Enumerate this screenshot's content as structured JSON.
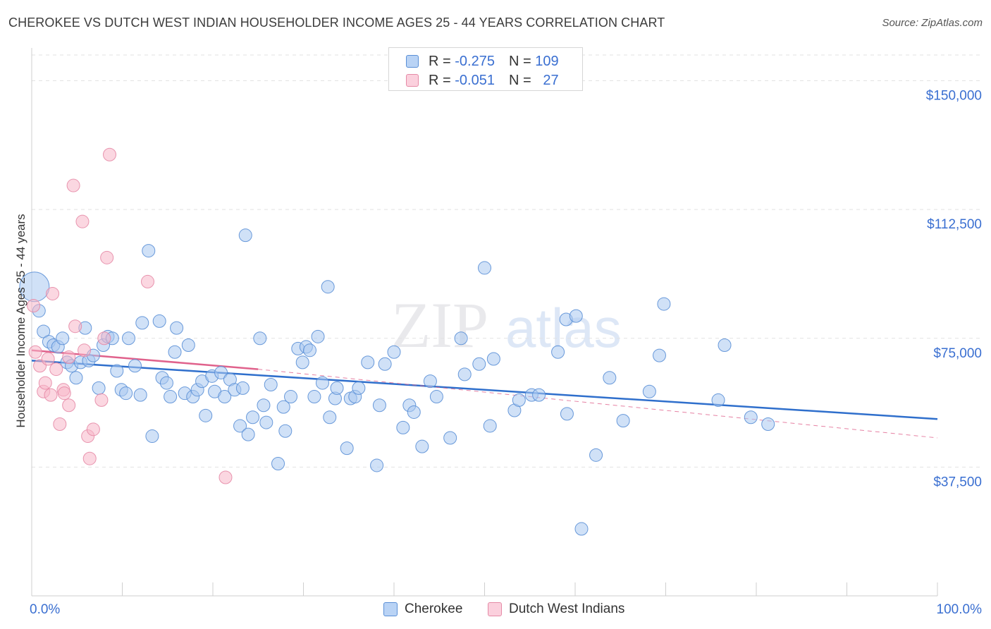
{
  "header": {
    "title": "CHEROKEE VS DUTCH WEST INDIAN HOUSEHOLDER INCOME AGES 25 - 44 YEARS CORRELATION CHART",
    "source": "Source: ZipAtlas.com"
  },
  "legend": {
    "rows": [
      {
        "r_label": "R =",
        "r_value": "-0.275",
        "n_label": "N =",
        "n_value": "109"
      },
      {
        "r_label": "R =",
        "r_value": "-0.051",
        "n_label": "N =",
        "n_value": "27"
      }
    ]
  },
  "watermark": {
    "zip": "ZIP",
    "atlas": "atlas"
  },
  "colors": {
    "cherokee_fill": "#a9c8f0",
    "cherokee_stroke": "#5a8fd6",
    "cherokee_line": "#2f6fcc",
    "dutch_fill": "#f7b6c9",
    "dutch_stroke": "#e58aa6",
    "dutch_line": "#e0628c",
    "axis_label": "#3a6fd1"
  },
  "chart_data": {
    "type": "scatter",
    "title": "CHEROKEE VS DUTCH WEST INDIAN HOUSEHOLDER INCOME AGES 25 - 44 YEARS CORRELATION CHART",
    "xlabel": "",
    "ylabel": "Householder Income Ages 25 - 44 years",
    "xlim": [
      0,
      100
    ],
    "ylim": [
      0,
      157500
    ],
    "x_tick_labels": [
      "0.0%",
      "100.0%"
    ],
    "y_ticks": [
      {
        "value": 37500,
        "label": "$37,500"
      },
      {
        "value": 75000,
        "label": "$75,000"
      },
      {
        "value": 112500,
        "label": "$112,500"
      },
      {
        "value": 150000,
        "label": "$150,000"
      }
    ],
    "grid": true,
    "legend_position": "bottom-center",
    "series": [
      {
        "name": "Cherokee",
        "R": -0.275,
        "N": 109,
        "trend": {
          "x": [
            0,
            100
          ],
          "y": [
            68500,
            51500
          ],
          "style": "solid"
        },
        "points": [
          {
            "x": 0.3,
            "y": 90000,
            "size": "large"
          },
          {
            "x": 0.8,
            "y": 83000
          },
          {
            "x": 1.3,
            "y": 77000
          },
          {
            "x": 1.9,
            "y": 74000
          },
          {
            "x": 2.4,
            "y": 73000
          },
          {
            "x": 2.9,
            "y": 72500
          },
          {
            "x": 3.4,
            "y": 75000
          },
          {
            "x": 3.9,
            "y": 68000
          },
          {
            "x": 4.4,
            "y": 67000
          },
          {
            "x": 4.9,
            "y": 63500
          },
          {
            "x": 5.4,
            "y": 68000
          },
          {
            "x": 5.9,
            "y": 78000
          },
          {
            "x": 6.3,
            "y": 68500
          },
          {
            "x": 6.8,
            "y": 70000
          },
          {
            "x": 7.4,
            "y": 60500
          },
          {
            "x": 7.9,
            "y": 73000
          },
          {
            "x": 8.4,
            "y": 75500
          },
          {
            "x": 8.9,
            "y": 75000
          },
          {
            "x": 9.4,
            "y": 65500
          },
          {
            "x": 9.9,
            "y": 60000
          },
          {
            "x": 10.4,
            "y": 59000
          },
          {
            "x": 10.7,
            "y": 75000
          },
          {
            "x": 11.4,
            "y": 67000
          },
          {
            "x": 12.0,
            "y": 58500
          },
          {
            "x": 12.2,
            "y": 79500
          },
          {
            "x": 12.9,
            "y": 100500
          },
          {
            "x": 13.3,
            "y": 46500
          },
          {
            "x": 14.1,
            "y": 80000
          },
          {
            "x": 14.4,
            "y": 63500
          },
          {
            "x": 14.9,
            "y": 62000
          },
          {
            "x": 15.3,
            "y": 58000
          },
          {
            "x": 15.8,
            "y": 71000
          },
          {
            "x": 16.0,
            "y": 78000
          },
          {
            "x": 16.9,
            "y": 59000
          },
          {
            "x": 17.3,
            "y": 73000
          },
          {
            "x": 17.8,
            "y": 58000
          },
          {
            "x": 18.3,
            "y": 60000
          },
          {
            "x": 18.8,
            "y": 62500
          },
          {
            "x": 19.2,
            "y": 52500
          },
          {
            "x": 19.9,
            "y": 64000
          },
          {
            "x": 20.2,
            "y": 59500
          },
          {
            "x": 20.9,
            "y": 65000
          },
          {
            "x": 21.3,
            "y": 58000
          },
          {
            "x": 21.9,
            "y": 63000
          },
          {
            "x": 22.4,
            "y": 60000
          },
          {
            "x": 23.0,
            "y": 49500
          },
          {
            "x": 23.3,
            "y": 60500
          },
          {
            "x": 23.6,
            "y": 105000
          },
          {
            "x": 23.9,
            "y": 47000
          },
          {
            "x": 24.4,
            "y": 52000
          },
          {
            "x": 25.2,
            "y": 75000
          },
          {
            "x": 25.6,
            "y": 55500
          },
          {
            "x": 25.9,
            "y": 50500
          },
          {
            "x": 26.4,
            "y": 61500
          },
          {
            "x": 27.2,
            "y": 38500
          },
          {
            "x": 27.8,
            "y": 55000
          },
          {
            "x": 28.0,
            "y": 48000
          },
          {
            "x": 28.6,
            "y": 58000
          },
          {
            "x": 29.4,
            "y": 72000
          },
          {
            "x": 29.9,
            "y": 68000
          },
          {
            "x": 30.3,
            "y": 72500
          },
          {
            "x": 30.7,
            "y": 71500
          },
          {
            "x": 31.2,
            "y": 58000
          },
          {
            "x": 31.6,
            "y": 75500
          },
          {
            "x": 32.1,
            "y": 62000
          },
          {
            "x": 32.7,
            "y": 90000
          },
          {
            "x": 32.9,
            "y": 52000
          },
          {
            "x": 33.5,
            "y": 57500
          },
          {
            "x": 33.7,
            "y": 60500
          },
          {
            "x": 34.8,
            "y": 43000
          },
          {
            "x": 35.2,
            "y": 57500
          },
          {
            "x": 35.7,
            "y": 58000
          },
          {
            "x": 36.1,
            "y": 60500
          },
          {
            "x": 37.1,
            "y": 68000
          },
          {
            "x": 38.1,
            "y": 38000
          },
          {
            "x": 38.4,
            "y": 55500
          },
          {
            "x": 39.0,
            "y": 67500
          },
          {
            "x": 40.0,
            "y": 71000
          },
          {
            "x": 41.0,
            "y": 49000
          },
          {
            "x": 41.7,
            "y": 55500
          },
          {
            "x": 42.2,
            "y": 53500
          },
          {
            "x": 43.1,
            "y": 43500
          },
          {
            "x": 44.0,
            "y": 62500
          },
          {
            "x": 44.7,
            "y": 58000
          },
          {
            "x": 46.2,
            "y": 46000
          },
          {
            "x": 47.4,
            "y": 75000
          },
          {
            "x": 47.8,
            "y": 64500
          },
          {
            "x": 49.4,
            "y": 67500
          },
          {
            "x": 50.0,
            "y": 95500
          },
          {
            "x": 50.6,
            "y": 49500
          },
          {
            "x": 51.0,
            "y": 69000
          },
          {
            "x": 53.3,
            "y": 54000
          },
          {
            "x": 53.8,
            "y": 57000
          },
          {
            "x": 55.2,
            "y": 58500
          },
          {
            "x": 56.0,
            "y": 58500
          },
          {
            "x": 58.1,
            "y": 71000
          },
          {
            "x": 59.0,
            "y": 80500
          },
          {
            "x": 59.1,
            "y": 53000
          },
          {
            "x": 60.1,
            "y": 81500
          },
          {
            "x": 62.3,
            "y": 41000
          },
          {
            "x": 60.7,
            "y": 19500
          },
          {
            "x": 63.8,
            "y": 63500
          },
          {
            "x": 65.3,
            "y": 51000
          },
          {
            "x": 68.2,
            "y": 59500
          },
          {
            "x": 69.3,
            "y": 70000
          },
          {
            "x": 69.8,
            "y": 85000
          },
          {
            "x": 75.8,
            "y": 57000
          },
          {
            "x": 76.5,
            "y": 73000
          },
          {
            "x": 79.4,
            "y": 52000
          },
          {
            "x": 81.3,
            "y": 50000
          }
        ]
      },
      {
        "name": "Dutch West Indians",
        "R": -0.051,
        "N": 27,
        "trend": {
          "x": [
            0,
            25
          ],
          "y": [
            71500,
            66000
          ],
          "style": "solid",
          "extended": {
            "x": [
              25,
              100
            ],
            "y": [
              66000,
              46000
            ],
            "style": "dashed"
          }
        },
        "points": [
          {
            "x": 0.2,
            "y": 84500
          },
          {
            "x": 0.4,
            "y": 71000
          },
          {
            "x": 0.9,
            "y": 67000
          },
          {
            "x": 1.3,
            "y": 59500
          },
          {
            "x": 1.5,
            "y": 62000
          },
          {
            "x": 1.8,
            "y": 69000
          },
          {
            "x": 2.1,
            "y": 58500
          },
          {
            "x": 2.3,
            "y": 88000
          },
          {
            "x": 2.7,
            "y": 66000
          },
          {
            "x": 3.1,
            "y": 50000
          },
          {
            "x": 3.5,
            "y": 60000
          },
          {
            "x": 3.6,
            "y": 59000
          },
          {
            "x": 4.1,
            "y": 55500
          },
          {
            "x": 4.1,
            "y": 69500
          },
          {
            "x": 4.6,
            "y": 119500
          },
          {
            "x": 4.8,
            "y": 78500
          },
          {
            "x": 5.6,
            "y": 109000
          },
          {
            "x": 5.8,
            "y": 71500
          },
          {
            "x": 6.2,
            "y": 46500
          },
          {
            "x": 6.4,
            "y": 40000
          },
          {
            "x": 6.8,
            "y": 48500
          },
          {
            "x": 7.7,
            "y": 57000
          },
          {
            "x": 8.0,
            "y": 75000
          },
          {
            "x": 8.3,
            "y": 98500
          },
          {
            "x": 8.6,
            "y": 128500
          },
          {
            "x": 12.8,
            "y": 91500
          },
          {
            "x": 21.4,
            "y": 34500
          }
        ]
      }
    ]
  }
}
